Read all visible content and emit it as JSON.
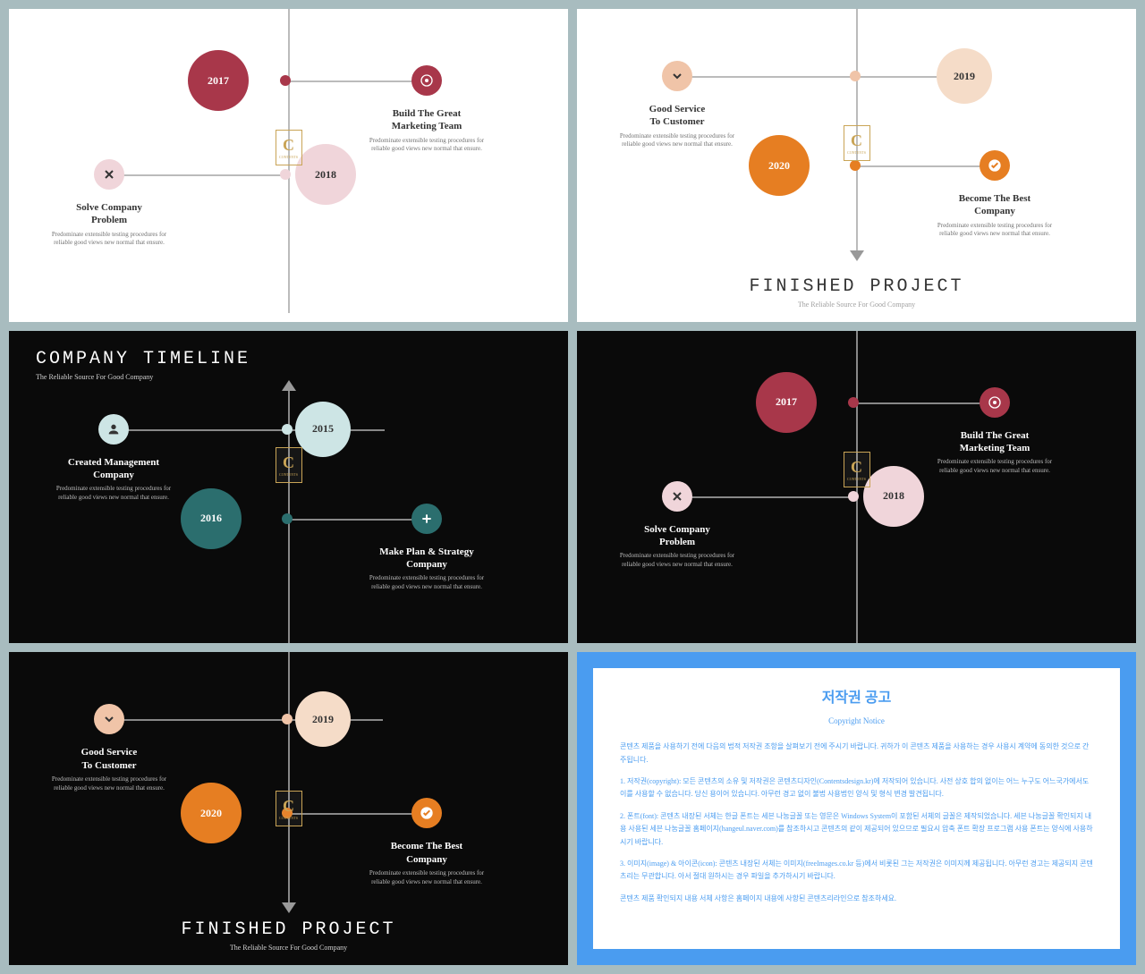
{
  "common": {
    "desc": "Predominate extensible testing procedures for reliable good views new normal that ensure.",
    "subtitle": "The Reliable Source For Good Company",
    "logo_letter": "C",
    "logo_text": "CONTENTS"
  },
  "colors": {
    "maroon": "#a8374a",
    "pink_light": "#f0d5da",
    "pink_pale": "#f5e5e8",
    "peach": "#f0c4a8",
    "peach_pale": "#f5dcc8",
    "orange": "#e67e22",
    "teal": "#2b6e6e",
    "teal_light": "#cde5e5",
    "blue": "#4a9cf0"
  },
  "slides": {
    "s1": {
      "y2017": "2017",
      "y2018": "2018",
      "n1_title": "Solve Company\nProblem",
      "n2_title": "Build The Great\nMarketing Team"
    },
    "s2": {
      "title": "FINISHED PROJECT",
      "y2019": "2019",
      "y2020": "2020",
      "n1_title": "Good Service\nTo Customer",
      "n2_title": "Become The Best\nCompany"
    },
    "s3": {
      "title": "COMPANY TIMELINE",
      "y2015": "2015",
      "y2016": "2016",
      "n1_title": "Created Management\nCompany",
      "n2_title": "Make Plan & Strategy\nCompany"
    },
    "s4": {
      "y2017": "2017",
      "y2018": "2018",
      "n1_title": "Solve Company\nProblem",
      "n2_title": "Build The Great\nMarketing Team"
    },
    "s5": {
      "title": "FINISHED PROJECT",
      "y2019": "2019",
      "y2020": "2020",
      "n1_title": "Good Service\nTo Customer",
      "n2_title": "Become The Best\nCompany"
    },
    "s6": {
      "title": "저작권 공고",
      "subtitle": "Copyright Notice",
      "p1": "콘텐츠 제품을 사용하기 전에 다음의 법적 저작권 조항을 살펴보기 전에 주시기 바랍니다. 귀하가 이 콘텐츠 제품을 사용하는 경우 사용시 계약에 동의한 것으로 간주됩니다.",
      "p2": "1. 저작권(copyright): 모든 콘텐츠의 소유 및 저작권은 콘텐츠디자인(Contentsdesign.kr)에 저작되어 있습니다. 사전 상호 합의 없이는 어느 누구도 어느국가에서도 이를 사용할 수 없습니다. 당신 용이어 있습니다. 아무런 경고 없이 불법 사용법인 양식 및 형식 변경 발견됩니다.",
      "p3": "2. 폰트(font): 콘텐츠 내장된 서체는 한글 폰트는 세븐 나눔글꼴 또는 영문은 Windows System이 포함된 서체의 글꼴은 제작되었습니다. 세븐 나눔글꼴 확인되지 내용 사용된 세븐 나눔글꼴 홈페이지(hangeul.naver.com)를 참조하시고 콘텐츠의 같이 제공되어 있으므로 필요시 압축 폰트 확장 프로그램 사용 폰트는 양식에 사용하시기 바랍니다.",
      "p4": "3. 이미지(image) & 아이콘(icon): 콘텐츠 내장된 서체는 이미지(freeImages.co.kr 등)에서 비롯된 그는 저작권은 이미지께 제공됩니다. 아무런 경고는 제공되지 콘텐츠리는 무관합니다. 아서 절대 원하시는 경우 파일을 추가하시기 바랍니다.",
      "p5": "콘텐츠 제품 확인되지 내용 서체 사항은 홈페이지 내용에 사항된 콘텐츠리라인으로 참조하세요."
    }
  }
}
